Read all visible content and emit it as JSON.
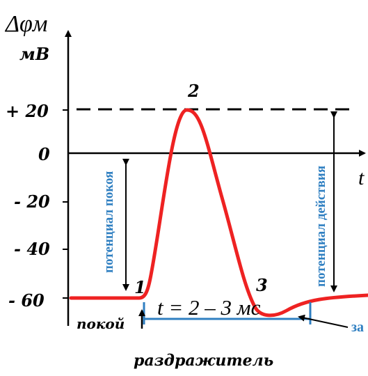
{
  "axis": {
    "y_symbol": "Δφм",
    "y_unit": "мВ",
    "x_symbol": "t",
    "y_ticks": [
      "+ 20",
      "0",
      "- 20",
      "- 40",
      "- 60"
    ]
  },
  "points": {
    "p1": "1",
    "p2": "2",
    "p3": "3"
  },
  "labels": {
    "resting_potential": "потенциал покоя",
    "action_potential": "потенциал действия",
    "rest": "покой",
    "duration": "t = 2 – 3 мс",
    "stimulus": "раздражитель",
    "cut_label": "за"
  },
  "colors": {
    "curve": "#ee2222",
    "blue_text": "#2f7fc1",
    "axis": "#000000"
  }
}
